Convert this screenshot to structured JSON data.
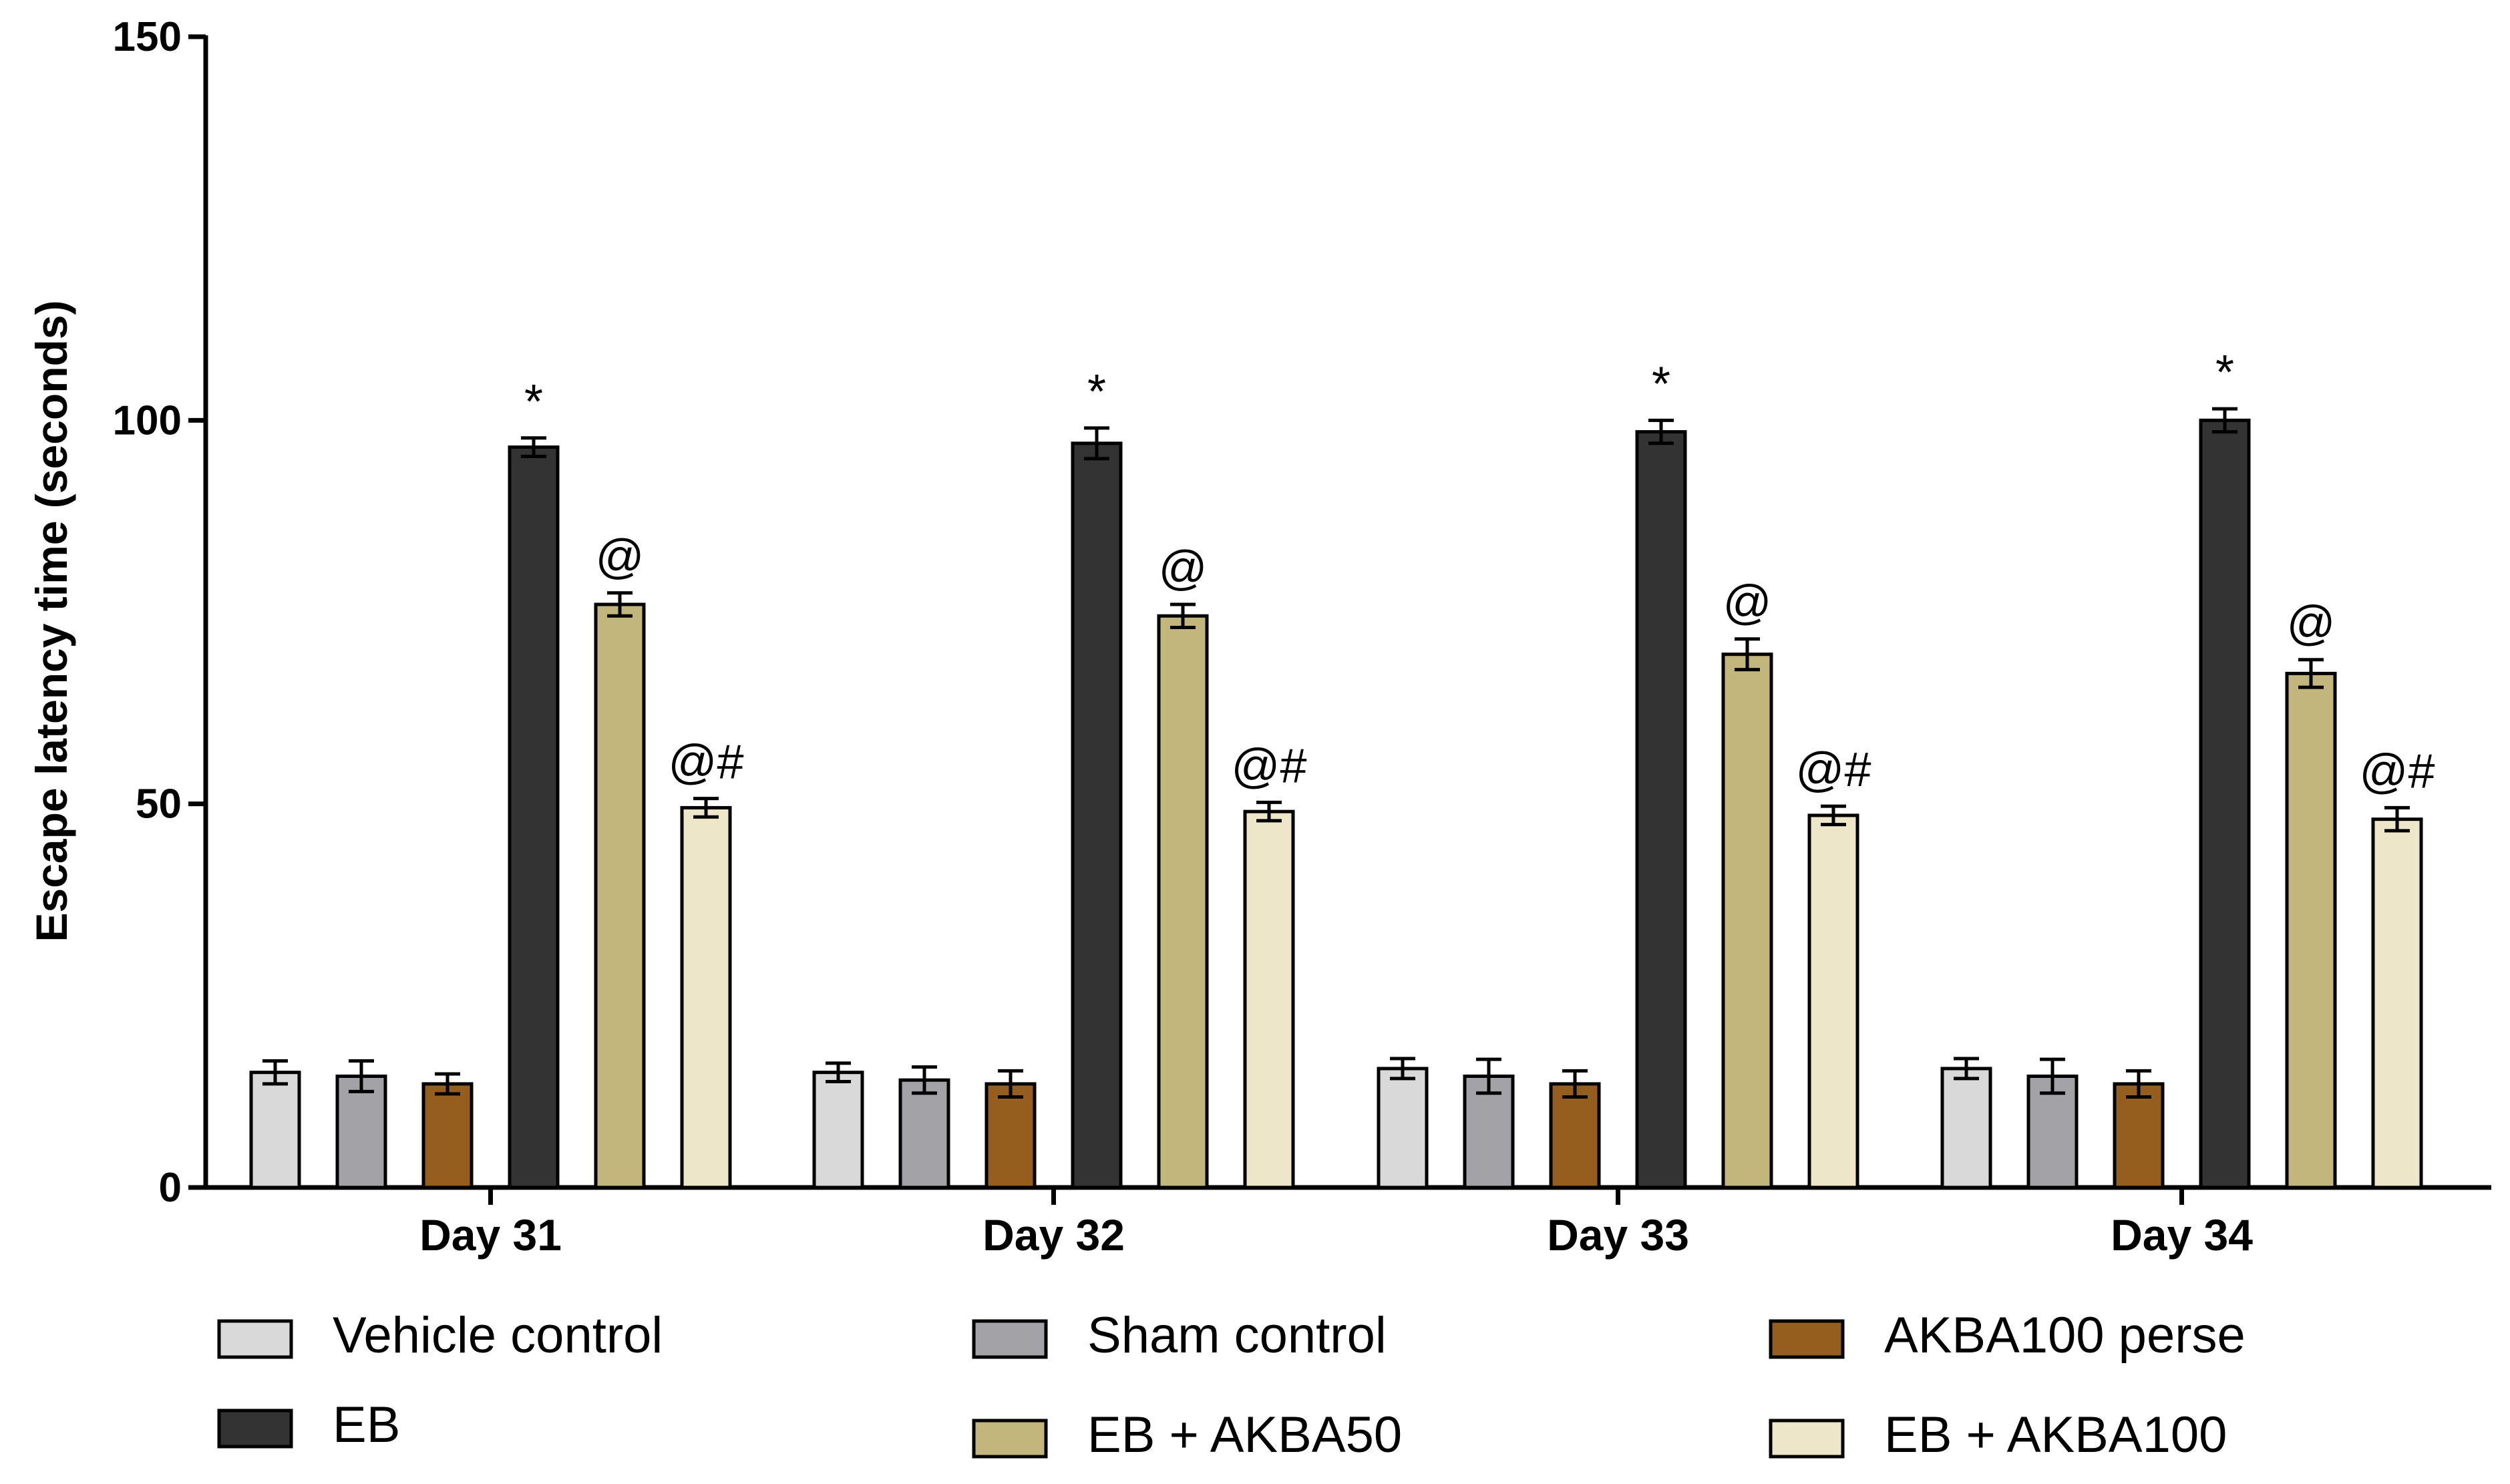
{
  "chart_data": {
    "type": "bar",
    "title": "",
    "xlabel": "",
    "ylabel": "Escape latency time (seconds)",
    "ylim": [
      0,
      150
    ],
    "yticks": [
      "0",
      "50",
      "100",
      "150"
    ],
    "grid": false,
    "legend_position": "bottom",
    "categories": [
      "Day 31",
      "Day 32",
      "Day 33",
      "Day 34"
    ],
    "series": [
      {
        "name": "Vehicle control",
        "color": "#d9d9d9",
        "values": [
          15,
          15,
          15.5,
          15.5
        ],
        "errors": [
          1.5,
          1.2,
          1.3,
          1.3
        ],
        "annotations": [
          "",
          "",
          "",
          ""
        ]
      },
      {
        "name": "Sham control",
        "color": "#a2a2a7",
        "values": [
          14.5,
          14,
          14.5,
          14.5
        ],
        "errors": [
          2,
          1.7,
          2.2,
          2.2
        ],
        "annotations": [
          "",
          "",
          "",
          ""
        ]
      },
      {
        "name": "AKBA100 perse",
        "color": "#955e1e",
        "values": [
          13.5,
          13.5,
          13.5,
          13.5
        ],
        "errors": [
          1.3,
          1.7,
          1.7,
          1.7
        ],
        "annotations": [
          "",
          "",
          "",
          ""
        ]
      },
      {
        "name": "EB",
        "color": "#333333",
        "values": [
          96.5,
          97,
          98.5,
          100
        ],
        "errors": [
          1.2,
          2,
          1.5,
          1.5
        ],
        "annotations": [
          "*",
          "*",
          "*",
          "*"
        ]
      },
      {
        "name": "EB + AKBA50",
        "color": "#c3b67c",
        "values": [
          76,
          74.5,
          69.5,
          67
        ],
        "errors": [
          1.5,
          1.5,
          2,
          1.8
        ],
        "annotations": [
          "@",
          "@",
          "@",
          "@"
        ]
      },
      {
        "name": "EB + AKBA100",
        "color": "#ede6c9",
        "values": [
          49.5,
          49,
          48.5,
          48
        ],
        "errors": [
          1.2,
          1.2,
          1.2,
          1.5
        ],
        "annotations": [
          "@#",
          "@#",
          "@#",
          "@#"
        ]
      }
    ]
  }
}
